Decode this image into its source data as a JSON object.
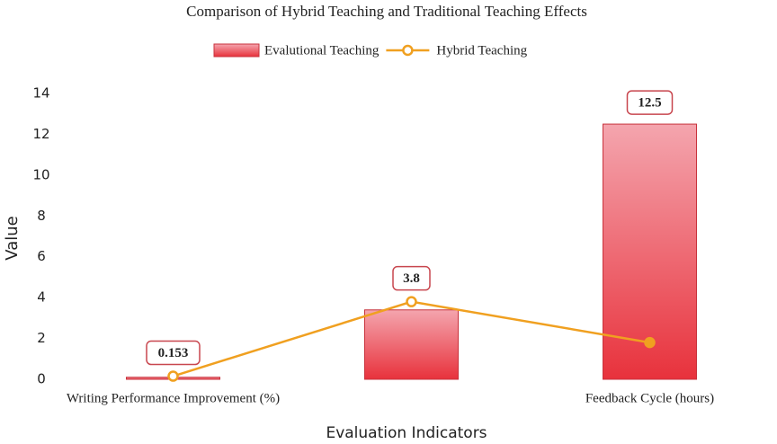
{
  "chart_data": {
    "type": "bar-line",
    "title": "Comparison of Hybrid Teaching and Traditional Teaching Effects",
    "x_label": "Evaluation Indicators",
    "y_label": "Value",
    "categories": [
      "Writing Performance Improvement (%)",
      null,
      "Feedback Cycle (hours)"
    ],
    "series": [
      {
        "name": "Evalutional Teaching",
        "type": "bar",
        "color": "#e8323c",
        "values": [
          0.1,
          3.4,
          12.5
        ],
        "value_labels": [
          null,
          null,
          "12.5"
        ]
      },
      {
        "name": "Hybrid Teaching",
        "type": "line",
        "color": "#f0a020",
        "values": [
          0.153,
          3.8,
          1.8
        ],
        "value_labels": [
          "0.153",
          "3.8",
          null
        ]
      }
    ],
    "ylim": [
      0,
      14
    ],
    "yticks": [
      0,
      2,
      4,
      6,
      8,
      10,
      12,
      14
    ],
    "grid": false,
    "legend": "top"
  }
}
